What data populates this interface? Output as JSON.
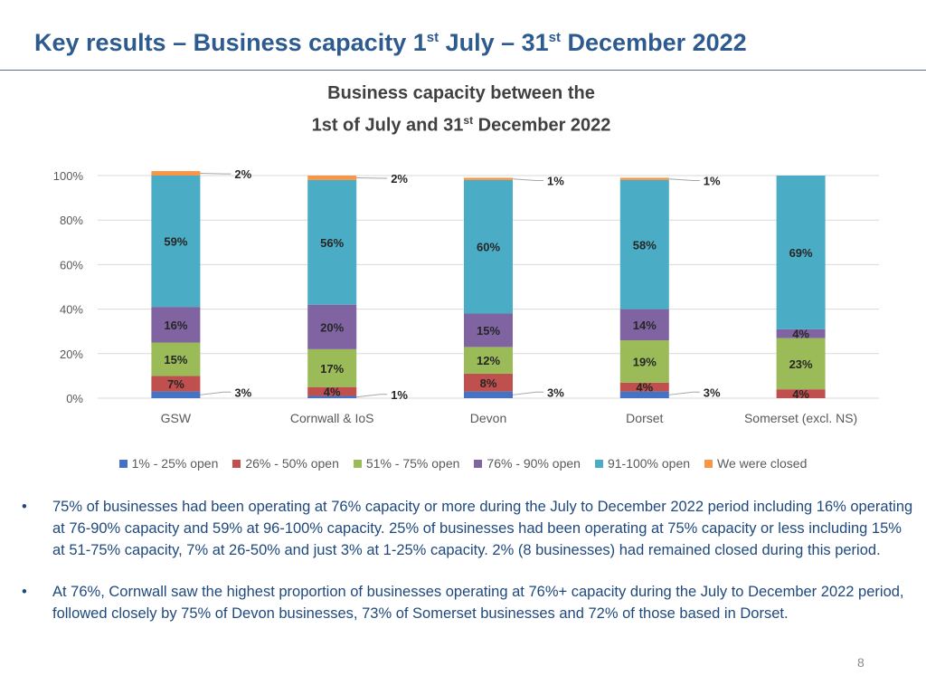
{
  "slide": {
    "title_parts": [
      "Key results – Business capacity 1",
      "st",
      " July – 31",
      "st",
      " December 2022"
    ],
    "page_number": "8"
  },
  "chart_data": {
    "type": "bar",
    "stacked": true,
    "title_line1": "Business capacity between the",
    "title_line2_parts": [
      "1st of July and 31",
      "st",
      " December 2022"
    ],
    "categories": [
      "GSW",
      "Cornwall & IoS",
      "Devon",
      "Dorset",
      "Somerset (excl. NS)"
    ],
    "ylim": [
      0,
      100
    ],
    "yticks": [
      0,
      20,
      40,
      60,
      80,
      100
    ],
    "ytick_labels": [
      "0%",
      "20%",
      "40%",
      "60%",
      "80%",
      "100%"
    ],
    "grid": true,
    "legend_position": "bottom",
    "series": [
      {
        "name": "1% - 25% open",
        "color": "#4472c4",
        "values": [
          3,
          1,
          3,
          3,
          0
        ],
        "labels": [
          "3%",
          "1%",
          "3%",
          "3%",
          ""
        ]
      },
      {
        "name": "26% - 50% open",
        "color": "#c0504d",
        "values": [
          7,
          4,
          8,
          4,
          4
        ],
        "labels": [
          "7%",
          "4%",
          "8%",
          "4%",
          "4%"
        ]
      },
      {
        "name": "51% - 75% open",
        "color": "#9bbb59",
        "values": [
          15,
          17,
          12,
          19,
          23
        ],
        "labels": [
          "15%",
          "17%",
          "12%",
          "19%",
          "23%"
        ]
      },
      {
        "name": "76% - 90% open",
        "color": "#8064a2",
        "values": [
          16,
          20,
          15,
          14,
          4
        ],
        "labels": [
          "16%",
          "20%",
          "15%",
          "14%",
          "4%"
        ]
      },
      {
        "name": "91-100% open",
        "color": "#4bacc6",
        "values": [
          59,
          56,
          60,
          58,
          69
        ],
        "labels": [
          "59%",
          "56%",
          "60%",
          "58%",
          "69%"
        ]
      },
      {
        "name": "We were closed",
        "color": "#f79646",
        "values": [
          2,
          2,
          1,
          1,
          0
        ],
        "labels": [
          "2%",
          "2%",
          "1%",
          "1%",
          ""
        ]
      }
    ]
  },
  "bullets": [
    "75% of businesses had been operating at 76% capacity or more during the July to December 2022 period including 16% operating at 76-90% capacity and 59% at 96-100% capacity.  25% of businesses had been operating at 75% capacity or less including 15% at 51-75% capacity, 7% at 26-50% and just 3% at 1-25% capacity.  2% (8 businesses) had remained closed during this period.",
    "At 76%, Cornwall saw the highest proportion of businesses operating at 76%+ capacity during the July to December 2022 period, followed closely by 75% of Devon businesses, 73% of Somerset businesses and 72% of those based in Dorset."
  ],
  "bullet_marker": "•"
}
